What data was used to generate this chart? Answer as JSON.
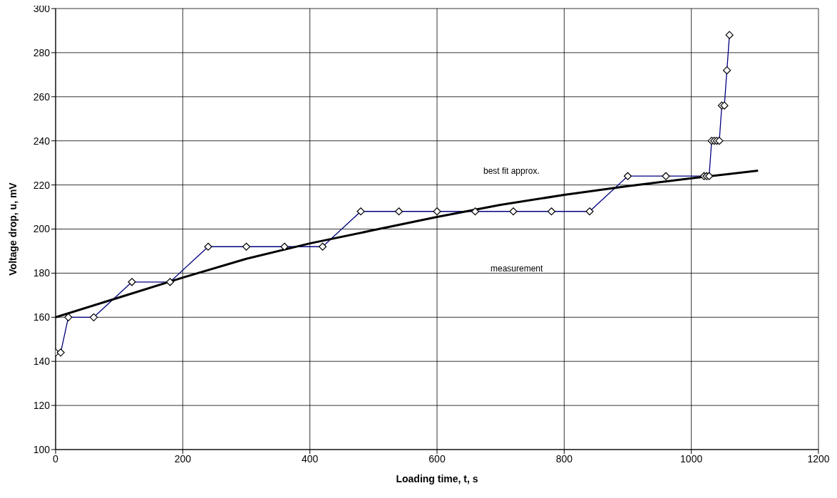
{
  "chart_data": {
    "type": "line",
    "xlabel": "Loading time, t, s",
    "ylabel": "Voltage drop, u, mV",
    "xlim": [
      0,
      1200
    ],
    "xticks": [
      0,
      200,
      400,
      600,
      800,
      1000,
      1200
    ],
    "ylim": [
      100,
      300
    ],
    "yticks": [
      100,
      120,
      140,
      160,
      180,
      200,
      220,
      240,
      260,
      280,
      300
    ],
    "grid": true,
    "legend": false,
    "series": [
      {
        "color": "#000080",
        "marker": "diamond",
        "line_style": "solid",
        "x": [
          0,
          8,
          20,
          60,
          120,
          180,
          240,
          300,
          360,
          420,
          480,
          540,
          600,
          660,
          720,
          780,
          840,
          900,
          960,
          1020,
          1024,
          1028,
          1032,
          1036,
          1040,
          1044,
          1048,
          1052,
          1056,
          1060
        ],
        "values": [
          144,
          144,
          160,
          160,
          176,
          176,
          192,
          192,
          192,
          192,
          208,
          208,
          208,
          208,
          208,
          208,
          208,
          224,
          224,
          224,
          224,
          224,
          240,
          240,
          240,
          240,
          256,
          256,
          272,
          288
        ]
      },
      {
        "color": "#000000",
        "marker": "none",
        "line_style": "solid",
        "x": [
          0,
          100,
          200,
          300,
          400,
          500,
          600,
          700,
          800,
          900,
          1000,
          1105
        ],
        "values": [
          160,
          169,
          178,
          186.5,
          193.5,
          199.5,
          205.5,
          211,
          215.5,
          219.5,
          223,
          226.5
        ]
      }
    ],
    "annotations": [
      "best fit approx.",
      "measurement"
    ]
  }
}
